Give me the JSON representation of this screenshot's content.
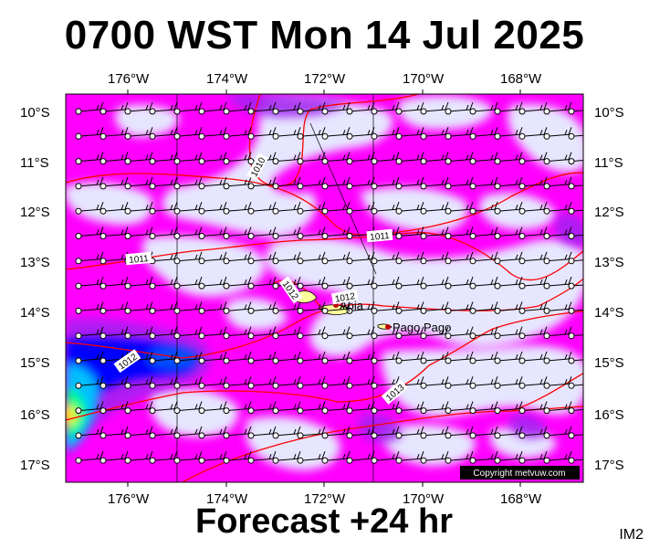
{
  "title": "0700 WST Mon 14 Jul 2025",
  "footer": "Forecast +24 hr",
  "image_code": "IM2",
  "copyright": "Copyright metvuw.com",
  "places": {
    "apia": "Apia",
    "pago_pago": "Pago Pago"
  },
  "isobar_labels": [
    "1010",
    "1011",
    "1011",
    "1012",
    "1012",
    "1012",
    "1013"
  ],
  "lon_labels": [
    "176°W",
    "174°W",
    "172°W",
    "170°W",
    "168°W"
  ],
  "lat_labels": [
    "10°S",
    "11°S",
    "12°S",
    "13°S",
    "14°S",
    "15°S",
    "16°S",
    "17°S"
  ],
  "colors": {
    "low_rain": "#e6e6ff",
    "moderate_rain": "#ff00ff",
    "heavy_rain": "#a020f0",
    "very_heavy_rain": "#0000ff",
    "extreme_rain": "#00c0ff",
    "isobar": "#ff0000",
    "land": "#ffff99"
  },
  "icons": {
    "wind": "wind-barb-icon",
    "station": "station-circle-icon"
  }
}
